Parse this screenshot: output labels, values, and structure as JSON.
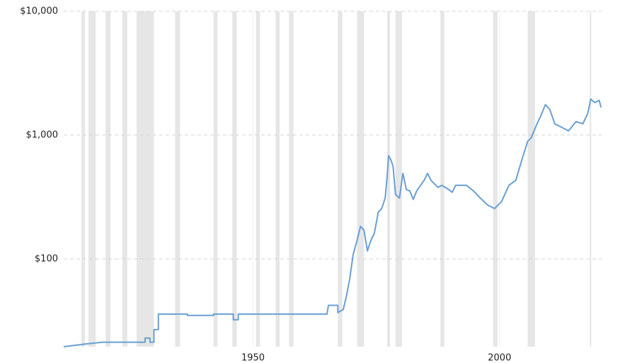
{
  "chart_data": {
    "type": "line",
    "log_scale": true,
    "grid": true,
    "color": "#6a9fd4",
    "shade_color": "#e6e6e6",
    "xlim": [
      1911.6,
      2020.7
    ],
    "xticks": [
      1950,
      2000
    ],
    "ylim": [
      19.5,
      10000
    ],
    "yticks": [
      {
        "value": 100,
        "label": "$100"
      },
      {
        "value": 1000,
        "label": "$1,000"
      },
      {
        "value": 10000,
        "label": "$10,000"
      }
    ],
    "shaded_ranges": [
      [
        1915.2,
        1915.9
      ],
      [
        1916.6,
        1918.1
      ],
      [
        1920.1,
        1921.1
      ],
      [
        1923.5,
        1924.5
      ],
      [
        1926.4,
        1929.9
      ],
      [
        1934.2,
        1935.2
      ],
      [
        1942.0,
        1942.8
      ],
      [
        1945.8,
        1946.7
      ],
      [
        1950.6,
        1951.4
      ],
      [
        1954.6,
        1955.4
      ],
      [
        1957.3,
        1958.2
      ],
      [
        1967.2,
        1968.1
      ],
      [
        1971.1,
        1972.5
      ],
      [
        1977.2,
        1977.8
      ],
      [
        1978.9,
        1980.2
      ],
      [
        1988.0,
        1988.8
      ],
      [
        1998.7,
        1999.6
      ],
      [
        2005.7,
        2007.2
      ],
      [
        2018.3,
        2018.6
      ]
    ],
    "x": [
      1911.6,
      1915.9,
      1919.5,
      1928.1,
      1928.1,
      1929.1,
      1929.1,
      1929.9,
      1929.9,
      1930.8,
      1930.8,
      1936.7,
      1936.7,
      1942.0,
      1942.0,
      1946.0,
      1946.0,
      1947.0,
      1947.0,
      1965.0,
      1965.3,
      1967.2,
      1967.2,
      1968.3,
      1968.9,
      1969.6,
      1970.3,
      1971.1,
      1971.8,
      1972.5,
      1973.2,
      1973.9,
      1974.6,
      1975.4,
      1976.1,
      1976.8,
      1977.2,
      1977.5,
      1977.9,
      1978.4,
      1978.9,
      1979.7,
      1980.4,
      1981.1,
      1981.8,
      1982.5,
      1983.2,
      1984.7,
      1985.4,
      1986.1,
      1987.5,
      1988.3,
      1989.7,
      1990.4,
      1991.1,
      1993.3,
      1994.7,
      1996.1,
      1997.6,
      1999.0,
      2000.4,
      2001.9,
      2003.3,
      2004.7,
      2005.7,
      2006.4,
      2007.6,
      2008.3,
      2009.3,
      2010.2,
      2011.2,
      2012.6,
      2014.0,
      2015.5,
      2016.9,
      2017.9,
      2018.5,
      2019.3,
      2020.2,
      2020.6
    ],
    "values": [
      19.5,
      20.5,
      21.2,
      21.2,
      22.9,
      22.9,
      21.2,
      21.2,
      26.8,
      26.8,
      35.8,
      35.8,
      34.9,
      34.9,
      35.8,
      35.8,
      32.2,
      32.2,
      35.8,
      35.8,
      42.1,
      42.1,
      36.8,
      39,
      49.1,
      68.3,
      108,
      141,
      183,
      171,
      116,
      141,
      161,
      238,
      255,
      310,
      460,
      682,
      639,
      561,
      331,
      310,
      491,
      363,
      354,
      302,
      354,
      431,
      491,
      431,
      378,
      393,
      363,
      345,
      393,
      393,
      354,
      310,
      272,
      255,
      290,
      393,
      431,
      665,
      889,
      948,
      1234,
      1409,
      1763,
      1607,
      1234,
      1156,
      1081,
      1285,
      1234,
      1504,
      1956,
      1832,
      1905,
      1671
    ]
  }
}
